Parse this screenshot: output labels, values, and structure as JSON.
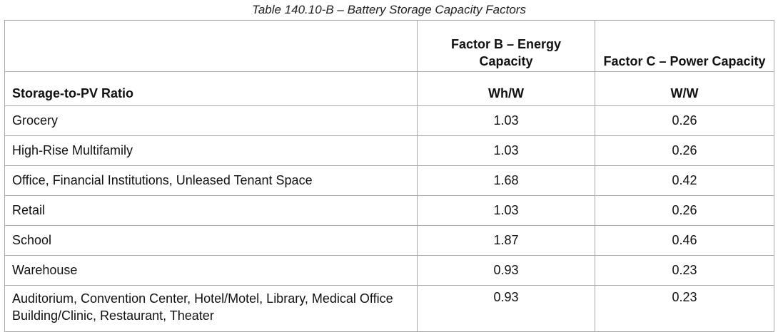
{
  "caption": "Table 140.10-B – Battery Storage Capacity Factors",
  "headers": {
    "factor_b": "Factor B – Energy Capacity",
    "factor_c": "Factor C – Power Capacity",
    "ratio_label": "Storage-to-PV Ratio",
    "unit_b": "Wh/W",
    "unit_c": "W/W"
  },
  "rows": [
    {
      "label": "Grocery",
      "b": "1.03",
      "c": "0.26"
    },
    {
      "label": "High-Rise Multifamily",
      "b": "1.03",
      "c": "0.26"
    },
    {
      "label": "Office, Financial Institutions, Unleased Tenant Space",
      "b": "1.68",
      "c": "0.42"
    },
    {
      "label": "Retail",
      "b": "1.03",
      "c": "0.26"
    },
    {
      "label": "School",
      "b": "1.87",
      "c": "0.46"
    },
    {
      "label": "Warehouse",
      "b": "0.93",
      "c": "0.23"
    },
    {
      "label": "Auditorium, Convention Center, Hotel/Motel, Library, Medical Office Building/Clinic, Restaurant, Theater",
      "b": "0.93",
      "c": "0.23"
    }
  ]
}
